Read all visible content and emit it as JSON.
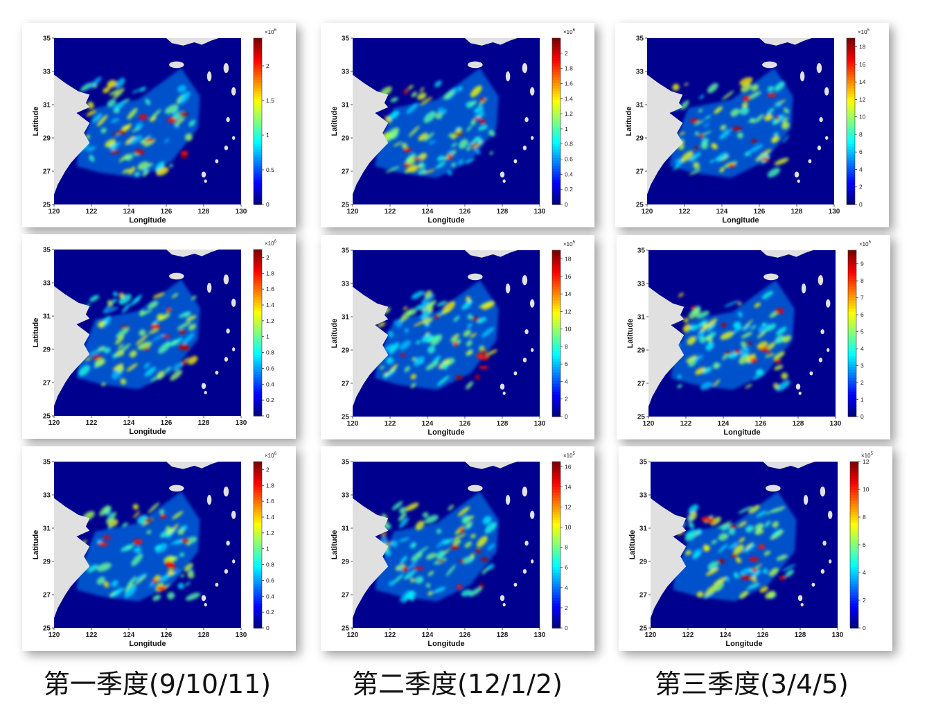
{
  "colors": {
    "ocean": "#00008f",
    "land": "#e0e0e0",
    "colormap": "jet"
  },
  "column_titles": [
    "第一季度(9/10/11)",
    "第二季度(12/1/2)",
    "第三季度(3/4/5)"
  ],
  "chart_data": [
    {
      "type": "heatmap",
      "xlabel": "Longitude",
      "ylabel": "Latitude",
      "xlim": [
        120,
        130
      ],
      "ylim": [
        25,
        35
      ],
      "xticks": [
        "120",
        "122",
        "124",
        "126",
        "128",
        "130"
      ],
      "yticks": [
        "25",
        "27",
        "29",
        "31",
        "33",
        "35"
      ],
      "colorbar": {
        "multiplier": "×10",
        "exponent": "6",
        "ticks": [
          "0",
          "0.5",
          "1",
          "1.5",
          "2"
        ],
        "max": 2.4
      }
    },
    {
      "type": "heatmap",
      "xlabel": "Longitude",
      "ylabel": "Latitude",
      "xlim": [
        120,
        130
      ],
      "ylim": [
        25,
        35
      ],
      "xticks": [
        "120",
        "122",
        "124",
        "126",
        "128",
        "130"
      ],
      "yticks": [
        "25",
        "27",
        "29",
        "31",
        "33",
        "35"
      ],
      "colorbar": {
        "multiplier": "×10",
        "exponent": "6",
        "ticks": [
          "0",
          "0.2",
          "0.4",
          "0.6",
          "0.8",
          "1",
          "1.2",
          "1.4",
          "1.6",
          "1.8",
          "2"
        ],
        "max": 2.2
      }
    },
    {
      "type": "heatmap",
      "xlabel": "Longitude",
      "ylabel": "Latitude",
      "xlim": [
        120,
        130
      ],
      "ylim": [
        25,
        35
      ],
      "xticks": [
        "120",
        "122",
        "124",
        "126",
        "128",
        "130"
      ],
      "yticks": [
        "25",
        "27",
        "29",
        "31",
        "33",
        "35"
      ],
      "colorbar": {
        "multiplier": "×10",
        "exponent": "5",
        "ticks": [
          "0",
          "2",
          "4",
          "6",
          "8",
          "10",
          "12",
          "14",
          "16",
          "18"
        ],
        "max": 19
      }
    },
    {
      "type": "heatmap",
      "xlabel": "Longitude",
      "ylabel": "Latitude",
      "xlim": [
        120,
        130
      ],
      "ylim": [
        25,
        35
      ],
      "xticks": [
        "120",
        "122",
        "124",
        "126",
        "128",
        "130"
      ],
      "yticks": [
        "25",
        "27",
        "29",
        "31",
        "33",
        "35"
      ],
      "colorbar": {
        "multiplier": "×10",
        "exponent": "6",
        "ticks": [
          "0",
          "0.2",
          "0.4",
          "0.6",
          "0.8",
          "1",
          "1.2",
          "1.4",
          "1.6",
          "1.8",
          "2"
        ],
        "max": 2.1
      }
    },
    {
      "type": "heatmap",
      "xlabel": "Longitude",
      "ylabel": "Latitude",
      "xlim": [
        120,
        130
      ],
      "ylim": [
        25,
        35
      ],
      "xticks": [
        "120",
        "122",
        "124",
        "126",
        "128",
        "130"
      ],
      "yticks": [
        "25",
        "27",
        "29",
        "31",
        "33",
        "35"
      ],
      "colorbar": {
        "multiplier": "×10",
        "exponent": "5",
        "ticks": [
          "0",
          "2",
          "4",
          "6",
          "8",
          "10",
          "12",
          "14",
          "16",
          "18"
        ],
        "max": 19
      }
    },
    {
      "type": "heatmap",
      "xlabel": "Longitude",
      "ylabel": "Latitude",
      "xlim": [
        120,
        130
      ],
      "ylim": [
        25,
        35
      ],
      "xticks": [
        "120",
        "122",
        "124",
        "126",
        "128",
        "130"
      ],
      "yticks": [
        "25",
        "27",
        "29",
        "31",
        "33",
        "35"
      ],
      "colorbar": {
        "multiplier": "×10",
        "exponent": "5",
        "ticks": [
          "0",
          "1",
          "2",
          "3",
          "4",
          "5",
          "6",
          "7",
          "8",
          "9"
        ],
        "max": 9.8
      }
    },
    {
      "type": "heatmap",
      "xlabel": "Longitude",
      "ylabel": "Latitude",
      "xlim": [
        120,
        130
      ],
      "ylim": [
        25,
        35
      ],
      "xticks": [
        "120",
        "122",
        "124",
        "126",
        "128",
        "130"
      ],
      "yticks": [
        "25",
        "27",
        "29",
        "31",
        "33",
        "35"
      ],
      "colorbar": {
        "multiplier": "×10",
        "exponent": "6",
        "ticks": [
          "0",
          "0.2",
          "0.4",
          "0.6",
          "0.8",
          "1",
          "1.2",
          "1.4",
          "1.6",
          "1.8",
          "2"
        ],
        "max": 2.1
      }
    },
    {
      "type": "heatmap",
      "xlabel": "Longitude",
      "ylabel": "Latitude",
      "xlim": [
        120,
        130
      ],
      "ylim": [
        25,
        35
      ],
      "xticks": [
        "120",
        "122",
        "124",
        "126",
        "128",
        "130"
      ],
      "yticks": [
        "25",
        "27",
        "29",
        "31",
        "33",
        "35"
      ],
      "colorbar": {
        "multiplier": "×10",
        "exponent": "5",
        "ticks": [
          "0",
          "2",
          "4",
          "6",
          "8",
          "10",
          "12",
          "14",
          "16"
        ],
        "max": 16.5
      }
    },
    {
      "type": "heatmap",
      "xlabel": "Longitude",
      "ylabel": "Latitude",
      "xlim": [
        120,
        130
      ],
      "ylim": [
        25,
        35
      ],
      "xticks": [
        "120",
        "122",
        "124",
        "126",
        "128",
        "130"
      ],
      "yticks": [
        "25",
        "27",
        "29",
        "31",
        "33",
        "35"
      ],
      "colorbar": {
        "multiplier": "×10",
        "exponent": "5",
        "ticks": [
          "0",
          "2",
          "4",
          "6",
          "8",
          "10",
          "12"
        ],
        "max": 12
      }
    }
  ]
}
